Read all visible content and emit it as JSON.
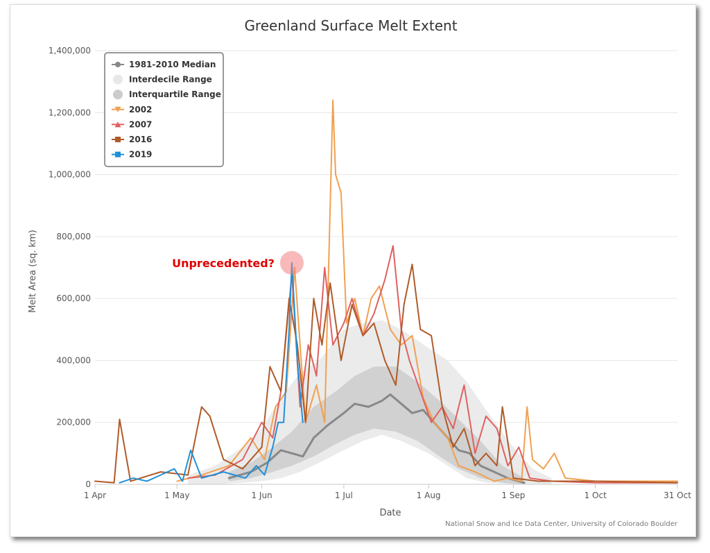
{
  "chart_data": {
    "type": "line",
    "title": "Greenland Surface Melt Extent",
    "xlabel": "Date",
    "ylabel": "Melt Area (sq. km)",
    "credit": "National Snow and Ice Data Center, University of Colorado Boulder",
    "annotation": {
      "text": "Unprecedented?",
      "x": "2019-06-12",
      "y": 715000
    },
    "xlim": [
      "2019-04-01",
      "2019-10-31"
    ],
    "ylim": [
      0,
      1400000
    ],
    "grid": true,
    "legend_position": "top-left",
    "x_ticks": [
      {
        "date": "2019-04-01",
        "label": "1 Apr"
      },
      {
        "date": "2019-05-01",
        "label": "1 May"
      },
      {
        "date": "2019-06-01",
        "label": "1 Jun"
      },
      {
        "date": "2019-07-01",
        "label": "1 Jul"
      },
      {
        "date": "2019-08-01",
        "label": "1 Aug"
      },
      {
        "date": "2019-09-01",
        "label": "1 Sep"
      },
      {
        "date": "2019-10-01",
        "label": "1 Oct"
      },
      {
        "date": "2019-10-31",
        "label": "31 Oct"
      }
    ],
    "y_ticks": [
      {
        "value": 0,
        "label": "0"
      },
      {
        "value": 200000,
        "label": "200,000"
      },
      {
        "value": 400000,
        "label": "400,000"
      },
      {
        "value": 600000,
        "label": "600,000"
      },
      {
        "value": 800000,
        "label": "800,000"
      },
      {
        "value": 1000000,
        "label": "1,000,000"
      },
      {
        "value": 1200000,
        "label": "1,200,000"
      },
      {
        "value": 1400000,
        "label": "1,400,000"
      }
    ],
    "bands": [
      {
        "name": "Interdecile Range",
        "color": "#e8e8e8",
        "x": [
          "2019-05-05",
          "2019-05-15",
          "2019-05-25",
          "2019-06-01",
          "2019-06-08",
          "2019-06-15",
          "2019-06-22",
          "2019-07-01",
          "2019-07-08",
          "2019-07-15",
          "2019-07-22",
          "2019-08-01",
          "2019-08-08",
          "2019-08-15",
          "2019-08-22",
          "2019-09-01",
          "2019-09-08",
          "2019-09-15"
        ],
        "lower": [
          0,
          0,
          5000,
          10000,
          20000,
          40000,
          70000,
          110000,
          140000,
          160000,
          140000,
          100000,
          60000,
          20000,
          5000,
          0,
          0,
          0
        ],
        "upper": [
          30000,
          60000,
          120000,
          180000,
          280000,
          360000,
          400000,
          500000,
          520000,
          530000,
          500000,
          440000,
          400000,
          330000,
          240000,
          120000,
          50000,
          20000
        ]
      },
      {
        "name": "Interquartile Range",
        "color": "#cccccc",
        "x": [
          "2019-05-20",
          "2019-05-28",
          "2019-06-05",
          "2019-06-12",
          "2019-06-20",
          "2019-06-28",
          "2019-07-05",
          "2019-07-12",
          "2019-07-20",
          "2019-07-28",
          "2019-08-05",
          "2019-08-12",
          "2019-08-20",
          "2019-08-28",
          "2019-09-05"
        ],
        "lower": [
          10000,
          20000,
          40000,
          60000,
          90000,
          130000,
          160000,
          180000,
          170000,
          140000,
          90000,
          50000,
          20000,
          5000,
          0
        ],
        "upper": [
          40000,
          70000,
          120000,
          170000,
          250000,
          300000,
          350000,
          380000,
          380000,
          330000,
          270000,
          210000,
          140000,
          60000,
          20000
        ]
      }
    ],
    "series": [
      {
        "name": "1981-2010 Median",
        "color": "#888888",
        "marker": "circle",
        "x": [
          "2019-05-20",
          "2019-05-28",
          "2019-06-03",
          "2019-06-08",
          "2019-06-12",
          "2019-06-16",
          "2019-06-20",
          "2019-06-25",
          "2019-07-01",
          "2019-07-05",
          "2019-07-10",
          "2019-07-15",
          "2019-07-18",
          "2019-07-22",
          "2019-07-26",
          "2019-07-30",
          "2019-08-03",
          "2019-08-08",
          "2019-08-12",
          "2019-08-16",
          "2019-08-20",
          "2019-08-25",
          "2019-08-30",
          "2019-09-05"
        ],
        "y": [
          20000,
          40000,
          70000,
          110000,
          100000,
          90000,
          150000,
          190000,
          230000,
          260000,
          250000,
          270000,
          290000,
          260000,
          230000,
          240000,
          200000,
          150000,
          110000,
          100000,
          60000,
          40000,
          20000,
          5000
        ]
      },
      {
        "name": "Interdecile Range",
        "color": "#e8e8e8",
        "marker": "circle",
        "x": [],
        "y": []
      },
      {
        "name": "Interquartile Range",
        "color": "#cccccc",
        "marker": "circle",
        "x": [],
        "y": []
      },
      {
        "name": "2002",
        "color": "#f0a050",
        "marker": "triangle-down",
        "x": [
          "2019-05-01",
          "2019-05-10",
          "2019-05-20",
          "2019-05-28",
          "2019-06-02",
          "2019-06-06",
          "2019-06-10",
          "2019-06-13",
          "2019-06-17",
          "2019-06-21",
          "2019-06-24",
          "2019-06-27",
          "2019-06-28",
          "2019-06-30",
          "2019-07-02",
          "2019-07-05",
          "2019-07-08",
          "2019-07-11",
          "2019-07-14",
          "2019-07-18",
          "2019-07-22",
          "2019-07-26",
          "2019-07-30",
          "2019-08-03",
          "2019-08-08",
          "2019-08-12",
          "2019-08-18",
          "2019-08-25",
          "2019-08-30",
          "2019-09-04",
          "2019-09-06",
          "2019-09-08",
          "2019-09-12",
          "2019-09-16",
          "2019-09-20",
          "2019-10-01",
          "2019-10-31"
        ],
        "y": [
          10000,
          30000,
          60000,
          150000,
          80000,
          250000,
          300000,
          700000,
          200000,
          320000,
          200000,
          1240000,
          1000000,
          940000,
          520000,
          600000,
          480000,
          600000,
          640000,
          500000,
          450000,
          480000,
          280000,
          200000,
          150000,
          60000,
          40000,
          10000,
          20000,
          10000,
          250000,
          80000,
          50000,
          100000,
          20000,
          10000,
          10000
        ]
      },
      {
        "name": "2007",
        "color": "#e06060",
        "marker": "triangle-up",
        "x": [
          "2019-05-05",
          "2019-05-15",
          "2019-05-25",
          "2019-06-01",
          "2019-06-05",
          "2019-06-08",
          "2019-06-12",
          "2019-06-15",
          "2019-06-18",
          "2019-06-21",
          "2019-06-24",
          "2019-06-27",
          "2019-07-01",
          "2019-07-04",
          "2019-07-08",
          "2019-07-12",
          "2019-07-16",
          "2019-07-19",
          "2019-07-22",
          "2019-07-25",
          "2019-07-29",
          "2019-08-02",
          "2019-08-06",
          "2019-08-10",
          "2019-08-14",
          "2019-08-18",
          "2019-08-22",
          "2019-08-26",
          "2019-08-30",
          "2019-09-03",
          "2019-09-07",
          "2019-09-15",
          "2019-10-01",
          "2019-10-31"
        ],
        "y": [
          20000,
          30000,
          80000,
          200000,
          150000,
          300000,
          680000,
          250000,
          450000,
          350000,
          700000,
          450000,
          520000,
          600000,
          480000,
          550000,
          660000,
          770000,
          500000,
          400000,
          300000,
          200000,
          250000,
          180000,
          320000,
          100000,
          220000,
          180000,
          60000,
          120000,
          20000,
          10000,
          5000,
          5000
        ]
      },
      {
        "name": "2016",
        "color": "#b05a28",
        "marker": "square",
        "x": [
          "2019-04-01",
          "2019-04-08",
          "2019-04-10",
          "2019-04-14",
          "2019-04-25",
          "2019-05-05",
          "2019-05-10",
          "2019-05-13",
          "2019-05-18",
          "2019-05-25",
          "2019-06-01",
          "2019-06-04",
          "2019-06-08",
          "2019-06-11",
          "2019-06-14",
          "2019-06-17",
          "2019-06-20",
          "2019-06-23",
          "2019-06-26",
          "2019-06-30",
          "2019-07-04",
          "2019-07-08",
          "2019-07-12",
          "2019-07-16",
          "2019-07-20",
          "2019-07-23",
          "2019-07-26",
          "2019-07-29",
          "2019-08-02",
          "2019-08-06",
          "2019-08-10",
          "2019-08-14",
          "2019-08-18",
          "2019-08-22",
          "2019-08-26",
          "2019-08-28",
          "2019-09-01",
          "2019-09-10",
          "2019-10-01",
          "2019-10-31"
        ],
        "y": [
          10000,
          5000,
          210000,
          10000,
          40000,
          30000,
          250000,
          220000,
          80000,
          50000,
          120000,
          380000,
          300000,
          600000,
          450000,
          200000,
          600000,
          450000,
          650000,
          400000,
          580000,
          480000,
          520000,
          400000,
          320000,
          580000,
          710000,
          500000,
          480000,
          250000,
          120000,
          180000,
          60000,
          100000,
          60000,
          250000,
          20000,
          10000,
          10000,
          5000
        ]
      },
      {
        "name": "2019",
        "color": "#2090d8",
        "marker": "square",
        "x": [
          "2019-04-10",
          "2019-04-15",
          "2019-04-20",
          "2019-04-25",
          "2019-04-30",
          "2019-05-03",
          "2019-05-06",
          "2019-05-10",
          "2019-05-14",
          "2019-05-18",
          "2019-05-22",
          "2019-05-26",
          "2019-05-30",
          "2019-06-02",
          "2019-06-05",
          "2019-06-07",
          "2019-06-09",
          "2019-06-11",
          "2019-06-12",
          "2019-06-14",
          "2019-06-16"
        ],
        "y": [
          5000,
          20000,
          10000,
          30000,
          50000,
          10000,
          110000,
          20000,
          30000,
          40000,
          30000,
          20000,
          60000,
          30000,
          120000,
          200000,
          200000,
          500000,
          715000,
          400000,
          200000
        ]
      }
    ]
  }
}
